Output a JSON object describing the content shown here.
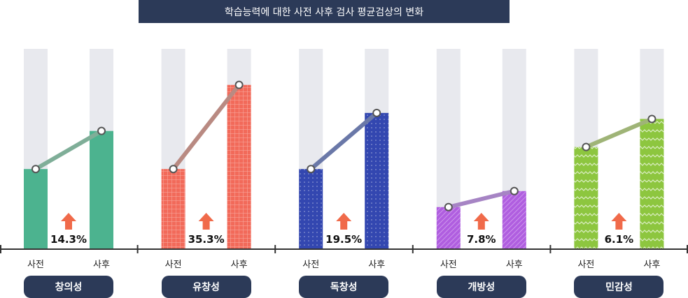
{
  "title": "학습능력에 대한 사전 사후 검사 평균검상의 변화",
  "chart_data": {
    "type": "bar",
    "title": "학습능력에 대한 사전 사후 검사 평균검상의 변화",
    "bar_labels": [
      "사전",
      "사후"
    ],
    "categories": [
      {
        "name": "창의성",
        "pre": 40,
        "post": 59,
        "change": "14.3%",
        "color": "#4cb38f",
        "line": "#7fae98",
        "pattern": "solid"
      },
      {
        "name": "유창성",
        "pre": 40,
        "post": 82,
        "change": "35.3%",
        "color": "#f26a5a",
        "line": "#b98a82",
        "pattern": "grid"
      },
      {
        "name": "독창성",
        "pre": 40,
        "post": 68,
        "change": "19.5%",
        "color": "#3347b0",
        "line": "#6a78a8",
        "pattern": "dots"
      },
      {
        "name": "개방성",
        "pre": 21,
        "post": 29,
        "change": "7.8%",
        "color": "#b05ee0",
        "line": "#a684c4",
        "pattern": "stripes"
      },
      {
        "name": "민감성",
        "pre": 51,
        "post": 65,
        "change": "6.1%",
        "color": "#8dc63f",
        "line": "#9fb477",
        "pattern": "zigzag"
      }
    ],
    "ylim": [
      0,
      100
    ],
    "colors": {
      "background_track": "#e8e9ee",
      "arrow": "#f06a4a",
      "pill": "#2c3a58",
      "axis": "#333333"
    }
  }
}
